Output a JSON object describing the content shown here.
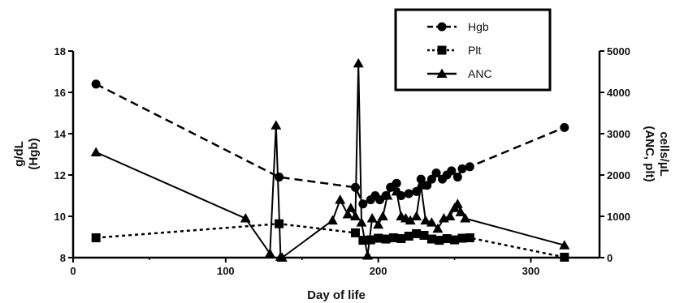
{
  "chart_data": {
    "type": "line",
    "xlabel": "Day of life",
    "ylabel_left": [
      "g/dL",
      "(Hgb)"
    ],
    "ylabel_right": [
      "cells/µL",
      "(ANC, plt)"
    ],
    "x_range": [
      0,
      345
    ],
    "x_ticks": [
      0,
      100,
      200,
      300
    ],
    "left_axis": {
      "range": [
        8,
        18
      ],
      "ticks": [
        8,
        10,
        12,
        14,
        16,
        18
      ]
    },
    "right_axis": {
      "range": [
        0,
        5000
      ],
      "ticks": [
        0,
        1000,
        2000,
        3000,
        4000,
        5000
      ]
    },
    "legend_position": "top-center",
    "series": [
      {
        "name": "Hgb",
        "axis": "left",
        "marker": "circle",
        "line": "dashed",
        "x": [
          15,
          135,
          185,
          190,
          195,
          198,
          201,
          205,
          208,
          212,
          215,
          220,
          225,
          228,
          232,
          235,
          238,
          242,
          245,
          248,
          252,
          255,
          260,
          322
        ],
        "y": [
          16.4,
          11.9,
          11.4,
          10.6,
          10.8,
          11.0,
          10.8,
          11.0,
          11.4,
          11.6,
          11.0,
          11.1,
          11.2,
          11.8,
          11.5,
          11.8,
          12.1,
          11.8,
          12.0,
          12.2,
          11.9,
          12.3,
          12.4,
          14.3
        ]
      },
      {
        "name": "Plt",
        "axis": "right",
        "marker": "square",
        "line": "dotted",
        "x": [
          15,
          135,
          185,
          190,
          195,
          200,
          205,
          210,
          215,
          220,
          225,
          230,
          235,
          240,
          245,
          250,
          255,
          260,
          322
        ],
        "y": [
          480,
          820,
          600,
          420,
          430,
          470,
          450,
          480,
          460,
          520,
          580,
          540,
          450,
          420,
          460,
          430,
          470,
          480,
          10
        ]
      },
      {
        "name": "ANC",
        "axis": "right",
        "marker": "triangle",
        "line": "solid",
        "x": [
          15,
          113,
          129,
          133,
          136,
          137,
          170,
          175,
          180,
          182,
          185,
          187,
          189,
          193,
          196,
          200,
          203,
          206,
          209,
          212,
          215,
          218,
          221,
          225,
          228,
          231,
          235,
          239,
          243,
          247,
          250,
          252,
          254,
          257,
          322
        ],
        "y": [
          2550,
          950,
          100,
          3200,
          20,
          0,
          900,
          1400,
          1050,
          1200,
          1000,
          4700,
          850,
          50,
          950,
          800,
          1000,
          1500,
          1700,
          1600,
          1000,
          950,
          900,
          1000,
          1750,
          900,
          850,
          700,
          950,
          1000,
          1200,
          1300,
          1100,
          950,
          300
        ]
      }
    ]
  }
}
